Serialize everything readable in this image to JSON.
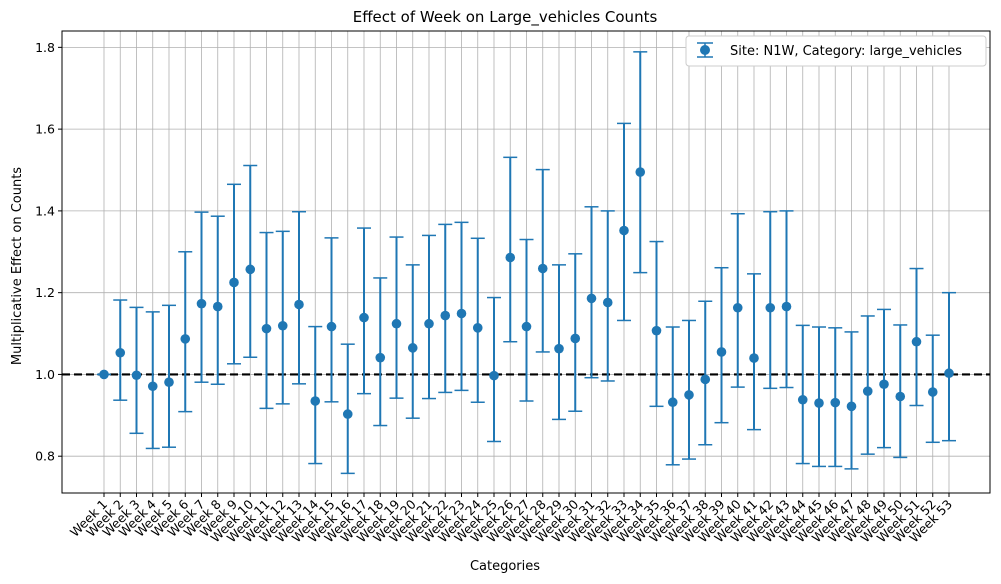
{
  "chart_data": {
    "type": "scatter",
    "title": "Effect of Week on Large_vehicles Counts",
    "xlabel": "Categories",
    "ylabel": "Multiplicative Effect on Counts",
    "ylim": [
      0.71,
      1.84
    ],
    "yticks": [
      0.8,
      1.0,
      1.2,
      1.4,
      1.6,
      1.8
    ],
    "ytick_labels": [
      "0.8",
      "1.0",
      "1.2",
      "1.4",
      "1.6",
      "1.8"
    ],
    "grid": true,
    "legend_position": "top-right",
    "reference_line": 1.0,
    "colors": {
      "series": "#1f77b4",
      "reference": "#000000",
      "grid": "#b0b0b0"
    },
    "categories": [
      "Week 1",
      "Week 2",
      "Week 3",
      "Week 4",
      "Week 5",
      "Week 6",
      "Week 7",
      "Week 8",
      "Week 9",
      "Week 10",
      "Week 11",
      "Week 12",
      "Week 13",
      "Week 14",
      "Week 15",
      "Week 16",
      "Week 17",
      "Week 18",
      "Week 19",
      "Week 20",
      "Week 21",
      "Week 22",
      "Week 23",
      "Week 24",
      "Week 25",
      "Week 26",
      "Week 27",
      "Week 28",
      "Week 29",
      "Week 30",
      "Week 31",
      "Week 32",
      "Week 33",
      "Week 34",
      "Week 35",
      "Week 36",
      "Week 37",
      "Week 38",
      "Week 39",
      "Week 40",
      "Week 41",
      "Week 42",
      "Week 43",
      "Week 44",
      "Week 45",
      "Week 46",
      "Week 47",
      "Week 48",
      "Week 49",
      "Week 50",
      "Week 51",
      "Week 52",
      "Week 53"
    ],
    "series": [
      {
        "name": "Site: N1W, Category: large_vehicles",
        "values": [
          1.0,
          1.053,
          0.998,
          0.971,
          0.981,
          1.087,
          1.173,
          1.166,
          1.225,
          1.257,
          1.112,
          1.119,
          1.171,
          0.935,
          1.117,
          0.903,
          1.139,
          1.041,
          1.124,
          1.065,
          1.124,
          1.144,
          1.149,
          1.114,
          0.997,
          1.286,
          1.117,
          1.259,
          1.063,
          1.088,
          1.186,
          1.176,
          1.352,
          1.495,
          1.107,
          0.932,
          0.95,
          0.988,
          1.055,
          1.163,
          1.04,
          1.163,
          1.166,
          0.938,
          0.93,
          0.931,
          0.922,
          0.959,
          0.976,
          0.946,
          1.08,
          0.957,
          1.003
        ],
        "lower": [
          1.0,
          0.937,
          0.856,
          0.819,
          0.822,
          0.909,
          0.981,
          0.976,
          1.026,
          1.042,
          0.917,
          0.928,
          0.977,
          0.782,
          0.933,
          0.758,
          0.953,
          0.875,
          0.942,
          0.893,
          0.941,
          0.956,
          0.961,
          0.932,
          0.836,
          1.08,
          0.935,
          1.055,
          0.89,
          0.91,
          0.992,
          0.984,
          1.132,
          1.249,
          0.922,
          0.779,
          0.793,
          0.828,
          0.882,
          0.969,
          0.865,
          0.966,
          0.968,
          0.782,
          0.775,
          0.775,
          0.769,
          0.805,
          0.821,
          0.797,
          0.924,
          0.834,
          0.838
        ],
        "upper": [
          1.0,
          1.182,
          1.164,
          1.153,
          1.169,
          1.3,
          1.397,
          1.387,
          1.465,
          1.511,
          1.347,
          1.35,
          1.398,
          1.117,
          1.334,
          1.074,
          1.358,
          1.236,
          1.336,
          1.268,
          1.34,
          1.367,
          1.372,
          1.333,
          1.188,
          1.531,
          1.33,
          1.501,
          1.268,
          1.295,
          1.41,
          1.4,
          1.614,
          1.789,
          1.325,
          1.116,
          1.132,
          1.179,
          1.261,
          1.393,
          1.246,
          1.398,
          1.4,
          1.12,
          1.116,
          1.114,
          1.104,
          1.143,
          1.159,
          1.121,
          1.259,
          1.096,
          1.2
        ]
      }
    ]
  }
}
